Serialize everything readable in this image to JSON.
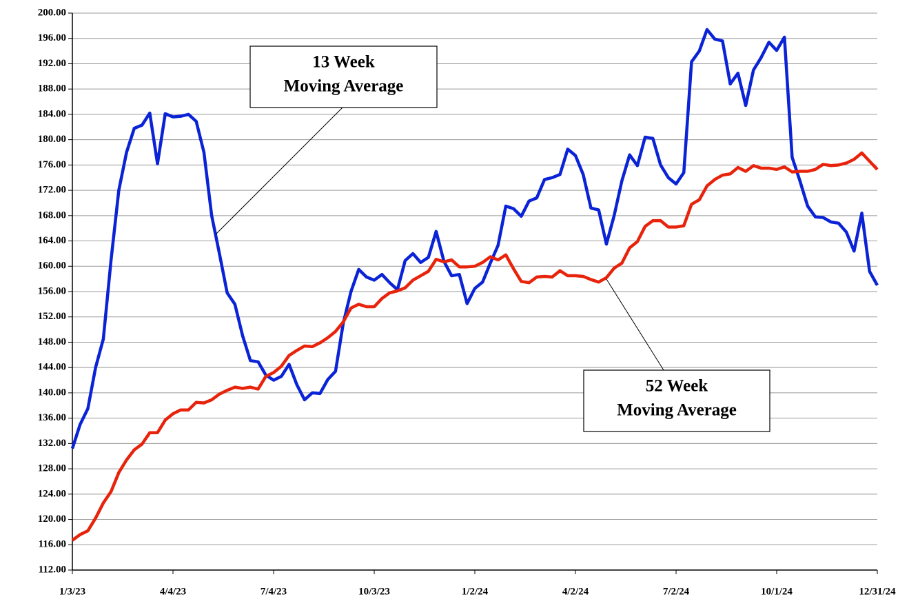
{
  "chart_data": {
    "type": "line",
    "categories": [
      "1/3/23",
      null,
      null,
      null,
      null,
      null,
      null,
      null,
      null,
      null,
      null,
      null,
      null,
      "4/4/23",
      null,
      null,
      null,
      null,
      null,
      null,
      null,
      null,
      null,
      null,
      null,
      null,
      "7/4/23",
      null,
      null,
      null,
      null,
      null,
      null,
      null,
      null,
      null,
      null,
      null,
      null,
      "10/3/23",
      null,
      null,
      null,
      null,
      null,
      null,
      null,
      null,
      null,
      null,
      null,
      null,
      "1/2/24",
      null,
      null,
      null,
      null,
      null,
      null,
      null,
      null,
      null,
      null,
      null,
      null,
      "4/2/24",
      null,
      null,
      null,
      null,
      null,
      null,
      null,
      null,
      null,
      null,
      null,
      null,
      "7/2/24",
      null,
      null,
      null,
      null,
      null,
      null,
      null,
      null,
      null,
      null,
      null,
      null,
      "10/1/24",
      null,
      null,
      null,
      null,
      null,
      null,
      null,
      null,
      null,
      null,
      null,
      null,
      "12/31/24"
    ],
    "series": [
      {
        "color": "#0a23d6",
        "values": [
          131.2,
          135,
          137.5,
          144,
          148.5,
          161,
          172,
          178,
          181.8,
          182.3,
          184.2,
          176.2,
          184.1,
          183.6,
          183.7,
          184,
          182.9,
          178,
          168,
          162,
          155.8,
          154,
          149,
          145.1,
          144.9,
          142.8,
          142,
          142.6,
          144.5,
          141.3,
          138.9,
          140,
          139.9,
          142.1,
          143.4,
          151,
          156,
          159.5,
          158.3,
          157.8,
          158.7,
          157.4,
          156.3,
          160.9,
          162,
          160.6,
          161.4,
          165.5,
          160.8,
          158.5,
          158.7,
          154.1,
          156.5,
          157.5,
          160.5,
          163.3,
          169.5,
          169.1,
          167.9,
          170.3,
          170.8,
          173.7,
          174,
          174.5,
          178.5,
          177.5,
          174.5,
          169.2,
          168.9,
          163.5,
          168,
          173.5,
          177.6,
          175.9,
          180.4,
          180.2,
          176,
          174,
          173,
          174.8,
          192.3,
          194,
          197.4,
          195.9,
          195.6,
          188.8,
          190.5,
          185.4,
          191,
          193,
          195.4,
          194.1,
          196.2,
          177.2,
          173.5,
          169.5,
          167.8,
          167.7,
          167,
          166.8,
          165.4,
          162.4,
          168.4,
          159.2,
          157
        ]
      },
      {
        "color": "#e8230c",
        "values": [
          116.7,
          117.6,
          118.2,
          120.2,
          122.6,
          124.4,
          127.4,
          129.4,
          131,
          131.9,
          133.7,
          133.7,
          135.7,
          136.7,
          137.3,
          137.3,
          138.5,
          138.4,
          138.9,
          139.8,
          140.4,
          140.9,
          140.7,
          140.9,
          140.6,
          142.6,
          143.2,
          144.2,
          145.9,
          146.7,
          147.4,
          147.3,
          147.9,
          148.7,
          149.7,
          151.2,
          153.4,
          154,
          153.6,
          153.6,
          154.9,
          155.8,
          156.1,
          156.6,
          157.8,
          158.5,
          159.2,
          161.1,
          160.7,
          161,
          159.9,
          159.9,
          160,
          160.6,
          161.5,
          161,
          161.8,
          159.6,
          157.6,
          157.4,
          158.3,
          158.4,
          158.3,
          159.3,
          158.5,
          158.5,
          158.4,
          157.9,
          157.5,
          158.2,
          159.7,
          160.5,
          162.9,
          163.9,
          166.3,
          167.2,
          167.2,
          166.2,
          166.2,
          166.4,
          169.8,
          170.5,
          172.7,
          173.7,
          174.4,
          174.6,
          175.6,
          175,
          175.9,
          175.5,
          175.5,
          175.3,
          175.7,
          174.9,
          175,
          175,
          175.3,
          176.1,
          175.9,
          176,
          176.3,
          176.9,
          177.9,
          176.6,
          175.3
        ]
      }
    ],
    "ylim": [
      112,
      200
    ],
    "yticks": [
      {
        "value": 112,
        "label": "112.00"
      },
      {
        "value": 116,
        "label": "116.00"
      },
      {
        "value": 120,
        "label": "120.00"
      },
      {
        "value": 124,
        "label": "124.00"
      },
      {
        "value": 128,
        "label": "128.00"
      },
      {
        "value": 132,
        "label": "132.00"
      },
      {
        "value": 136,
        "label": "136.00"
      },
      {
        "value": 140,
        "label": "140.00"
      },
      {
        "value": 144,
        "label": "144.00"
      },
      {
        "value": 148,
        "label": "148.00"
      },
      {
        "value": 152,
        "label": "152.00"
      },
      {
        "value": 156,
        "label": "156.00"
      },
      {
        "value": 160,
        "label": "160.00"
      },
      {
        "value": 164,
        "label": "164.00"
      },
      {
        "value": 168,
        "label": "168.00"
      },
      {
        "value": 172,
        "label": "172.00"
      },
      {
        "value": 176,
        "label": "176.00"
      },
      {
        "value": 180,
        "label": "180.00"
      },
      {
        "value": 184,
        "label": "184.00"
      },
      {
        "value": 188,
        "label": "188.00"
      },
      {
        "value": 192,
        "label": "192.00"
      },
      {
        "value": 196,
        "label": "196.00"
      },
      {
        "value": 200,
        "label": "200.00"
      }
    ],
    "grid": true,
    "annotations": [
      {
        "lines": [
          "13 Week",
          "Moving Average"
        ]
      },
      {
        "lines": [
          "52 Week",
          "Moving Average"
        ]
      }
    ]
  }
}
